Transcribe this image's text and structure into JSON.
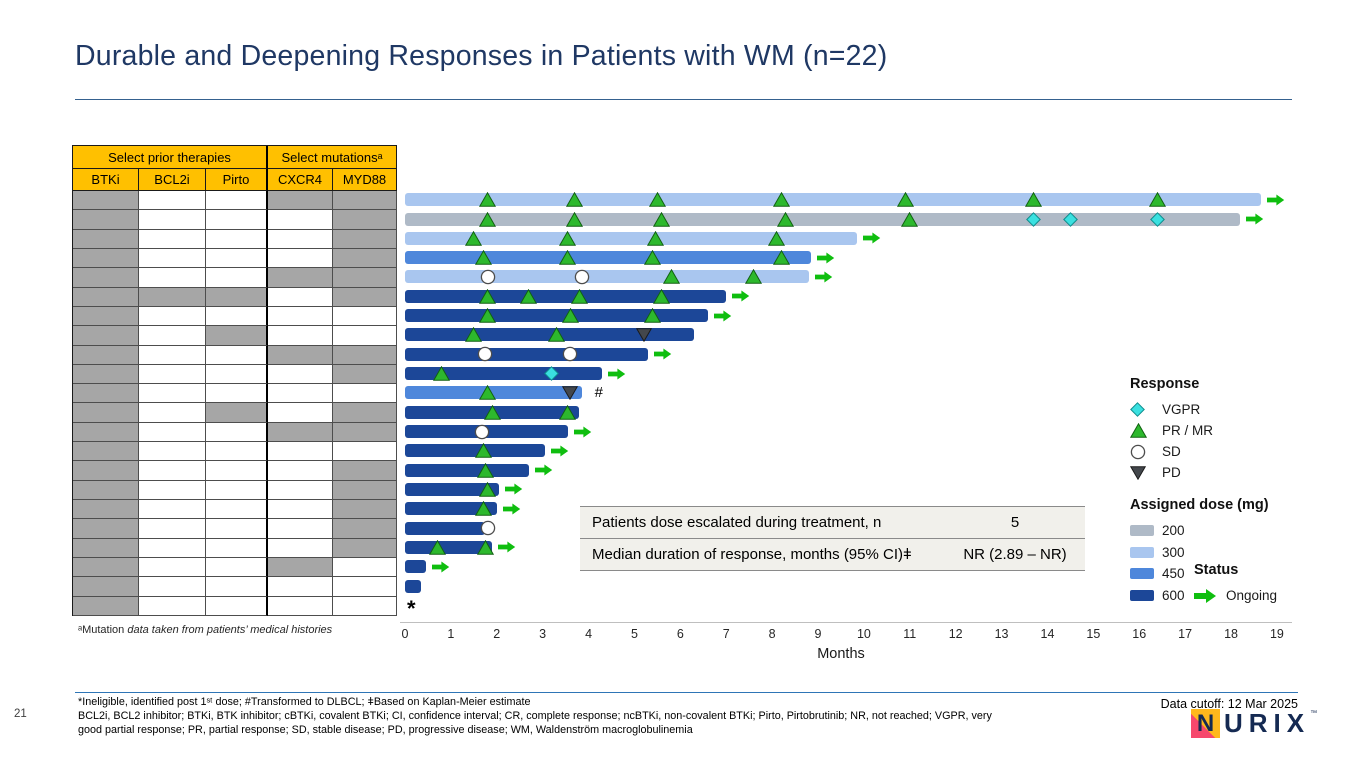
{
  "title": "Durable and Deepening Responses in Patients with WM  (n=22)",
  "colors": {
    "title_navy": "#1f3864",
    "accent_rule": "#2e75b6",
    "header_orange": "#ffc000",
    "cell_gray": "#a6a6a6",
    "dose_200": "#afbac7",
    "dose_300": "#a9c6ef",
    "dose_450": "#4e87db",
    "dose_600": "#1c4798",
    "pr_mr": "#2db82d",
    "pr_mr_stroke": "#116111",
    "vgpr": "#3ae0e0",
    "vgpr_stroke": "#0d8c8c",
    "sd_fill": "#ffffff",
    "sd_stroke": "#4d4d4d",
    "pd": "#43474c",
    "pd_stroke": "#1a1a1a",
    "ongoing": "#0fbe0f"
  },
  "therapy_table": {
    "group_headers": [
      {
        "label": "Select prior therapies",
        "span": 3
      },
      {
        "label": "Select mutationsᵃ",
        "span": 2
      }
    ],
    "columns": [
      "BTKi",
      "BCL2i",
      "Pirto",
      "CXCR4",
      "MYD88"
    ],
    "rows": [
      [
        1,
        0,
        0,
        1,
        1
      ],
      [
        1,
        0,
        0,
        0,
        1
      ],
      [
        1,
        0,
        0,
        0,
        1
      ],
      [
        1,
        0,
        0,
        0,
        1
      ],
      [
        1,
        0,
        0,
        1,
        1
      ],
      [
        1,
        1,
        1,
        0,
        1
      ],
      [
        1,
        0,
        0,
        0,
        0
      ],
      [
        1,
        0,
        1,
        0,
        0
      ],
      [
        1,
        0,
        0,
        1,
        1
      ],
      [
        1,
        0,
        0,
        0,
        1
      ],
      [
        1,
        0,
        0,
        0,
        0
      ],
      [
        1,
        0,
        1,
        0,
        1
      ],
      [
        1,
        0,
        0,
        1,
        1
      ],
      [
        1,
        0,
        0,
        0,
        0
      ],
      [
        1,
        0,
        0,
        0,
        1
      ],
      [
        1,
        0,
        0,
        0,
        1
      ],
      [
        1,
        0,
        0,
        0,
        1
      ],
      [
        1,
        0,
        0,
        0,
        1
      ],
      [
        1,
        0,
        0,
        0,
        1
      ],
      [
        1,
        0,
        0,
        1,
        0
      ],
      [
        1,
        0,
        0,
        0,
        0
      ],
      [
        1,
        0,
        0,
        0,
        0
      ]
    ],
    "footnote_prefix": "ᵃMutation ",
    "footnote_italic": "data taken from patients’ medical histories"
  },
  "chart_data": {
    "type": "bar",
    "subtype": "swimmer",
    "orientation": "horizontal",
    "title": "Durable and Deepening Responses in Patients with WM (n=22)",
    "patients_n": 22,
    "xlabel": "Months",
    "xlim": [
      0,
      19
    ],
    "x_axis": {
      "label": "Months",
      "ticks": [
        0,
        1,
        2,
        3,
        4,
        5,
        6,
        7,
        8,
        9,
        10,
        11,
        12,
        13,
        14,
        15,
        16,
        17,
        18,
        19
      ]
    },
    "marker_meaning": {
      "pr_mr": "PR / MR response",
      "vgpr": "VGPR response",
      "sd": "Stable disease",
      "pd": "Progressive disease"
    },
    "rows": [
      {
        "patient": 1,
        "dose_mg": 300,
        "end_month": 18.65,
        "ongoing": true,
        "pr_mr": [
          1.8,
          3.7,
          5.5,
          8.2,
          10.9,
          13.7,
          16.4
        ],
        "vgpr": [],
        "sd": [],
        "pd": [],
        "annotation": ""
      },
      {
        "patient": 2,
        "dose_mg": 200,
        "end_month": 18.2,
        "ongoing": true,
        "pr_mr": [
          1.8,
          3.7,
          5.6,
          8.3,
          11.0
        ],
        "vgpr": [
          13.7,
          14.5,
          16.4
        ],
        "sd": [],
        "pd": [],
        "annotation": ""
      },
      {
        "patient": 3,
        "dose_mg": 300,
        "end_month": 9.85,
        "ongoing": true,
        "pr_mr": [
          1.5,
          3.55,
          5.45,
          8.1
        ],
        "vgpr": [],
        "sd": [],
        "pd": [],
        "annotation": ""
      },
      {
        "patient": 4,
        "dose_mg": 450,
        "end_month": 8.85,
        "ongoing": true,
        "pr_mr": [
          1.7,
          3.55,
          5.4,
          8.2
        ],
        "vgpr": [],
        "sd": [],
        "pd": [],
        "annotation": ""
      },
      {
        "patient": 5,
        "dose_mg": 300,
        "end_month": 8.8,
        "ongoing": true,
        "pr_mr": [
          5.8,
          7.6
        ],
        "vgpr": [],
        "sd": [
          1.8,
          3.85
        ],
        "pd": [],
        "annotation": ""
      },
      {
        "patient": 6,
        "dose_mg": 600,
        "end_month": 7.0,
        "ongoing": true,
        "pr_mr": [
          1.8,
          2.7,
          3.8,
          5.6
        ],
        "vgpr": [],
        "sd": [],
        "pd": [],
        "annotation": ""
      },
      {
        "patient": 7,
        "dose_mg": 600,
        "end_month": 6.6,
        "ongoing": true,
        "pr_mr": [
          1.8,
          3.6,
          5.4
        ],
        "vgpr": [],
        "sd": [],
        "pd": [],
        "annotation": ""
      },
      {
        "patient": 8,
        "dose_mg": 600,
        "end_month": 6.3,
        "ongoing": false,
        "pr_mr": [
          1.5,
          3.3
        ],
        "vgpr": [],
        "sd": [],
        "pd": [
          5.2
        ],
        "annotation": ""
      },
      {
        "patient": 9,
        "dose_mg": 600,
        "end_month": 5.3,
        "ongoing": true,
        "pr_mr": [],
        "vgpr": [],
        "sd": [
          1.75,
          3.6
        ],
        "pd": [],
        "annotation": ""
      },
      {
        "patient": 10,
        "dose_mg": 600,
        "end_month": 4.3,
        "ongoing": true,
        "pr_mr": [
          0.8
        ],
        "vgpr": [
          3.2
        ],
        "sd": [],
        "pd": [],
        "annotation": ""
      },
      {
        "patient": 11,
        "dose_mg": 450,
        "end_month": 3.85,
        "ongoing": false,
        "pr_mr": [
          1.8
        ],
        "vgpr": [],
        "sd": [],
        "pd": [
          3.6
        ],
        "annotation": "#"
      },
      {
        "patient": 12,
        "dose_mg": 600,
        "end_month": 3.8,
        "ongoing": false,
        "pr_mr": [
          1.9,
          3.55
        ],
        "vgpr": [],
        "sd": [],
        "pd": [],
        "annotation": ""
      },
      {
        "patient": 13,
        "dose_mg": 600,
        "end_month": 3.55,
        "ongoing": true,
        "pr_mr": [],
        "vgpr": [],
        "sd": [
          1.68
        ],
        "pd": [],
        "annotation": ""
      },
      {
        "patient": 14,
        "dose_mg": 600,
        "end_month": 3.05,
        "ongoing": true,
        "pr_mr": [
          1.7
        ],
        "vgpr": [],
        "sd": [],
        "pd": [],
        "annotation": ""
      },
      {
        "patient": 15,
        "dose_mg": 600,
        "end_month": 2.7,
        "ongoing": true,
        "pr_mr": [
          1.75
        ],
        "vgpr": [],
        "sd": [],
        "pd": [],
        "annotation": ""
      },
      {
        "patient": 16,
        "dose_mg": 600,
        "end_month": 2.05,
        "ongoing": true,
        "pr_mr": [
          1.8
        ],
        "vgpr": [],
        "sd": [],
        "pd": [],
        "annotation": ""
      },
      {
        "patient": 17,
        "dose_mg": 600,
        "end_month": 2.0,
        "ongoing": true,
        "pr_mr": [
          1.7
        ],
        "vgpr": [],
        "sd": [],
        "pd": [],
        "annotation": ""
      },
      {
        "patient": 18,
        "dose_mg": 600,
        "end_month": 1.75,
        "ongoing": false,
        "pr_mr": [],
        "vgpr": [],
        "sd": [
          1.8
        ],
        "pd": [],
        "annotation": ""
      },
      {
        "patient": 19,
        "dose_mg": 600,
        "end_month": 1.9,
        "ongoing": true,
        "pr_mr": [
          0.7,
          1.75
        ],
        "vgpr": [],
        "sd": [],
        "pd": [],
        "annotation": ""
      },
      {
        "patient": 20,
        "dose_mg": 600,
        "end_month": 0.45,
        "ongoing": true,
        "pr_mr": [],
        "vgpr": [],
        "sd": [],
        "pd": [],
        "annotation": ""
      },
      {
        "patient": 21,
        "dose_mg": 600,
        "end_month": 0.35,
        "ongoing": false,
        "pr_mr": [],
        "vgpr": [],
        "sd": [],
        "pd": [],
        "annotation": ""
      },
      {
        "patient": 22,
        "dose_mg": null,
        "end_month": 0,
        "ongoing": false,
        "pr_mr": [],
        "vgpr": [],
        "sd": [],
        "pd": [],
        "annotation": "*"
      }
    ]
  },
  "legend": {
    "response": {
      "title": "Response",
      "items": [
        {
          "marker": "vgpr",
          "label": "VGPR"
        },
        {
          "marker": "pr_mr",
          "label": "PR / MR"
        },
        {
          "marker": "sd",
          "label": "SD"
        },
        {
          "marker": "pd",
          "label": "PD"
        }
      ]
    },
    "dose": {
      "title": "Assigned dose (mg)",
      "items": [
        {
          "dose": "200",
          "label": "200"
        },
        {
          "dose": "300",
          "label": "300"
        },
        {
          "dose": "450",
          "label": "450"
        },
        {
          "dose": "600",
          "label": "600"
        }
      ]
    },
    "status": {
      "title": "Status",
      "items": [
        {
          "marker": "ongoing",
          "label": "Ongoing"
        }
      ]
    }
  },
  "stats_table": {
    "rows": [
      {
        "label": "Patients dose escalated during treatment, n",
        "value": "5"
      },
      {
        "label": "Median duration of response, months (95% CI)ǂ",
        "value": "NR (2.89 – NR)"
      }
    ]
  },
  "footer": {
    "footnotes": [
      "*Ineligible, identified post 1ˢᵗ dose; #Transformed to DLBCL; ǂBased on Kaplan-Meier estimate",
      "BCL2i, BCL2 inhibitor; BTKi, BTK inhibitor; cBTKi, covalent BTKi; CI, confidence interval; CR, complete response; ncBTKi, non-covalent BTKi; Pirto, Pirtobrutinib; NR, not reached; VGPR, very",
      "good partial response;  PR, partial response;  SD, stable disease; PD, progressive disease; WM, Waldenström macroglobulinemia"
    ],
    "data_cutoff": "Data cutoff: 12 Mar 2025",
    "page_number": "21",
    "logo": {
      "n": "N",
      "rest": "URIX",
      "tm": "™"
    }
  }
}
